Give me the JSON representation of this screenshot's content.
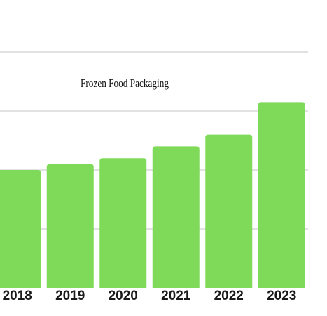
{
  "chart_data": {
    "type": "bar",
    "title": "Frozen Food Packaging",
    "categories": [
      "2018",
      "2019",
      "2020",
      "2021",
      "2022",
      "2023"
    ],
    "values": [
      40,
      42,
      44,
      48,
      52,
      63
    ],
    "ylim": [
      0,
      80
    ],
    "grid": true,
    "colors": {
      "bar": "#80da5a",
      "grid": "#d9d9d9"
    }
  }
}
